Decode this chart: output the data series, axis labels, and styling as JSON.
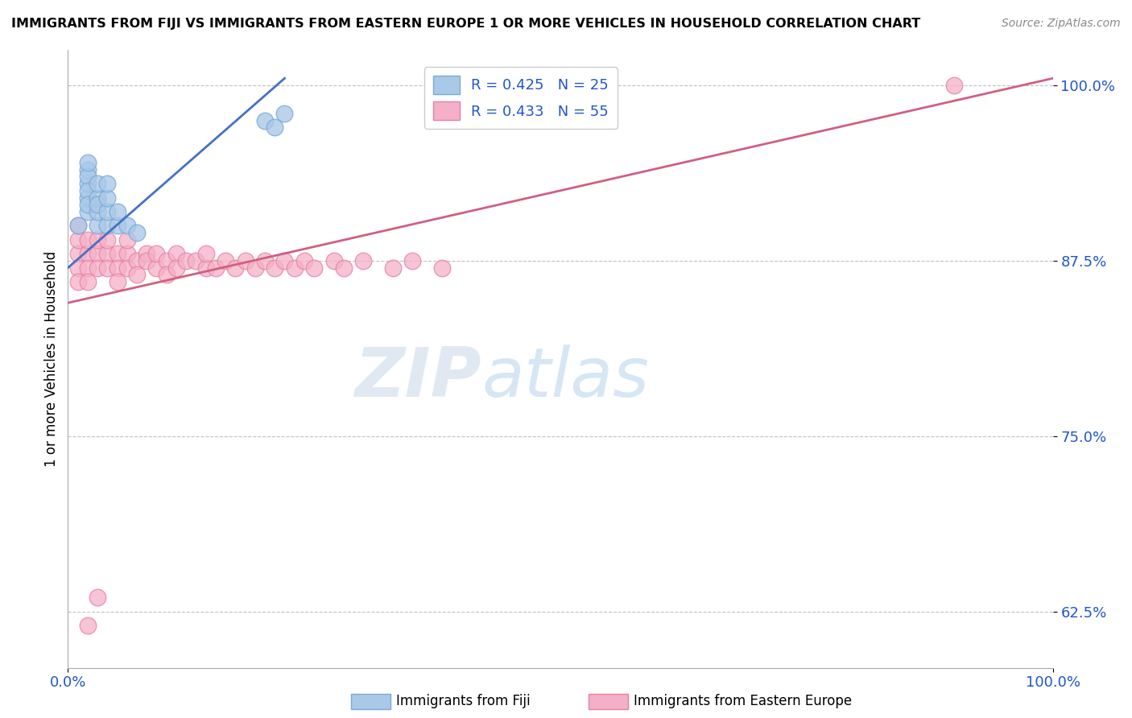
{
  "title": "IMMIGRANTS FROM FIJI VS IMMIGRANTS FROM EASTERN EUROPE 1 OR MORE VEHICLES IN HOUSEHOLD CORRELATION CHART",
  "source": "Source: ZipAtlas.com",
  "ylabel": "1 or more Vehicles in Household",
  "ytick_labels": [
    "62.5%",
    "75.0%",
    "87.5%",
    "100.0%"
  ],
  "ytick_values": [
    0.625,
    0.75,
    0.875,
    1.0
  ],
  "xlim": [
    0.0,
    1.0
  ],
  "ylim": [
    0.585,
    1.025
  ],
  "fiji_color": "#aac8e8",
  "fiji_edge": "#7aaad4",
  "eastern_color": "#f4b0c8",
  "eastern_edge": "#e880a0",
  "fiji_R": 0.425,
  "fiji_N": 25,
  "eastern_R": 0.433,
  "eastern_N": 55,
  "fiji_line_color": "#4472c4",
  "eastern_line_color": "#d06080",
  "legend_label_fiji": "Immigrants from Fiji",
  "legend_label_eastern": "Immigrants from Eastern Europe",
  "background_color": "#ffffff",
  "grid_color": "#bbbbbb",
  "fiji_x": [
    0.01,
    0.02,
    0.02,
    0.02,
    0.02,
    0.02,
    0.02,
    0.02,
    0.02,
    0.03,
    0.03,
    0.03,
    0.03,
    0.03,
    0.04,
    0.04,
    0.04,
    0.04,
    0.05,
    0.05,
    0.06,
    0.07,
    0.2,
    0.21,
    0.22
  ],
  "fiji_y": [
    0.9,
    0.91,
    0.92,
    0.93,
    0.94,
    0.935,
    0.925,
    0.915,
    0.945,
    0.9,
    0.91,
    0.92,
    0.93,
    0.915,
    0.9,
    0.91,
    0.92,
    0.93,
    0.9,
    0.91,
    0.9,
    0.895,
    0.975,
    0.97,
    0.98
  ],
  "eastern_x": [
    0.01,
    0.01,
    0.01,
    0.01,
    0.01,
    0.02,
    0.02,
    0.02,
    0.02,
    0.03,
    0.03,
    0.03,
    0.04,
    0.04,
    0.04,
    0.05,
    0.05,
    0.05,
    0.06,
    0.06,
    0.06,
    0.07,
    0.07,
    0.08,
    0.08,
    0.09,
    0.09,
    0.1,
    0.1,
    0.11,
    0.11,
    0.12,
    0.13,
    0.14,
    0.14,
    0.15,
    0.16,
    0.17,
    0.18,
    0.19,
    0.2,
    0.21,
    0.22,
    0.23,
    0.24,
    0.25,
    0.27,
    0.28,
    0.3,
    0.33,
    0.35,
    0.38,
    0.9,
    0.02,
    0.03
  ],
  "eastern_y": [
    0.88,
    0.89,
    0.87,
    0.9,
    0.86,
    0.88,
    0.87,
    0.89,
    0.86,
    0.88,
    0.87,
    0.89,
    0.88,
    0.87,
    0.89,
    0.88,
    0.87,
    0.86,
    0.88,
    0.87,
    0.89,
    0.875,
    0.865,
    0.88,
    0.875,
    0.87,
    0.88,
    0.875,
    0.865,
    0.88,
    0.87,
    0.875,
    0.875,
    0.87,
    0.88,
    0.87,
    0.875,
    0.87,
    0.875,
    0.87,
    0.875,
    0.87,
    0.875,
    0.87,
    0.875,
    0.87,
    0.875,
    0.87,
    0.875,
    0.87,
    0.875,
    0.87,
    1.0,
    0.615,
    0.635
  ],
  "fiji_line_x0": 0.0,
  "fiji_line_y0": 0.87,
  "fiji_line_x1": 0.22,
  "fiji_line_y1": 1.005,
  "eastern_line_x0": 0.0,
  "eastern_line_y0": 0.845,
  "eastern_line_x1": 1.0,
  "eastern_line_y1": 1.005
}
